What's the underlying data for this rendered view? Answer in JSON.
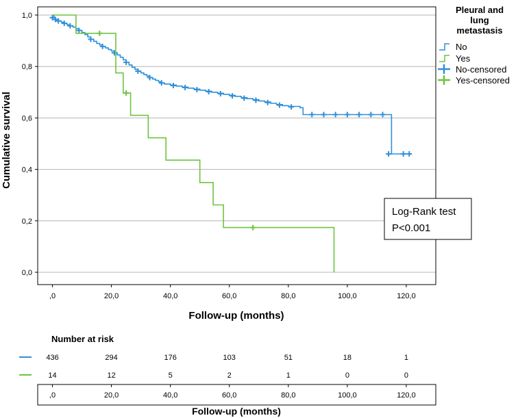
{
  "chart_data": {
    "type": "line",
    "subtype": "kaplan-meier",
    "xlabel": "Follow-up (months)",
    "ylabel": "Cumulative survival",
    "xlim": [
      -5,
      130
    ],
    "ylim": [
      0,
      1
    ],
    "x_ticks": [
      0,
      20,
      40,
      60,
      80,
      100,
      120
    ],
    "x_tick_labels": [
      ",0",
      "20,0",
      "40,0",
      "60,0",
      "80,0",
      "100,0",
      "120,0"
    ],
    "y_ticks": [
      0,
      0.2,
      0.4,
      0.6,
      0.8,
      1.0
    ],
    "y_tick_labels": [
      "0,0",
      "0,2",
      "0,4",
      "0,6",
      "0,8",
      "1,0"
    ],
    "grid": "horizontal",
    "legend": {
      "title_lines": [
        "Pleural and",
        "lung",
        "metastasis"
      ],
      "entries": [
        {
          "label": "No",
          "kind": "line",
          "series": "No"
        },
        {
          "label": "Yes",
          "kind": "line",
          "series": "Yes"
        },
        {
          "label": "No-censored",
          "kind": "censor",
          "series": "No"
        },
        {
          "label": "Yes-censored",
          "kind": "censor",
          "series": "Yes"
        }
      ]
    },
    "series": [
      {
        "name": "No",
        "color": "#2f8fd8",
        "steps": [
          [
            0,
            1.0
          ],
          [
            0.5,
            0.99
          ],
          [
            1,
            0.983
          ],
          [
            2,
            0.977
          ],
          [
            3,
            0.972
          ],
          [
            4,
            0.967
          ],
          [
            5,
            0.962
          ],
          [
            6,
            0.958
          ],
          [
            7,
            0.953
          ],
          [
            8,
            0.947
          ],
          [
            9,
            0.94
          ],
          [
            10,
            0.932
          ],
          [
            11,
            0.924
          ],
          [
            12,
            0.915
          ],
          [
            13,
            0.906
          ],
          [
            14,
            0.898
          ],
          [
            15,
            0.89
          ],
          [
            16,
            0.884
          ],
          [
            17,
            0.878
          ],
          [
            18,
            0.872
          ],
          [
            19,
            0.866
          ],
          [
            20,
            0.86
          ],
          [
            21,
            0.853
          ],
          [
            22,
            0.845
          ],
          [
            23,
            0.836
          ],
          [
            24,
            0.826
          ],
          [
            25,
            0.816
          ],
          [
            26,
            0.806
          ],
          [
            27,
            0.797
          ],
          [
            28,
            0.789
          ],
          [
            29,
            0.782
          ],
          [
            30,
            0.775
          ],
          [
            31,
            0.769
          ],
          [
            32,
            0.763
          ],
          [
            33,
            0.757
          ],
          [
            34,
            0.751
          ],
          [
            35,
            0.746
          ],
          [
            36,
            0.741
          ],
          [
            37,
            0.736
          ],
          [
            38,
            0.732
          ],
          [
            40,
            0.728
          ],
          [
            42,
            0.724
          ],
          [
            44,
            0.72
          ],
          [
            46,
            0.716
          ],
          [
            48,
            0.712
          ],
          [
            50,
            0.708
          ],
          [
            52,
            0.704
          ],
          [
            54,
            0.7
          ],
          [
            56,
            0.696
          ],
          [
            58,
            0.692
          ],
          [
            60,
            0.688
          ],
          [
            62,
            0.684
          ],
          [
            64,
            0.679
          ],
          [
            66,
            0.675
          ],
          [
            68,
            0.671
          ],
          [
            70,
            0.666
          ],
          [
            72,
            0.662
          ],
          [
            74,
            0.657
          ],
          [
            76,
            0.652
          ],
          [
            78,
            0.648
          ],
          [
            80,
            0.645
          ],
          [
            84,
            0.64
          ],
          [
            85,
            0.613
          ],
          [
            114,
            0.613
          ],
          [
            115,
            0.46
          ],
          [
            121,
            0.46
          ]
        ],
        "censored": [
          [
            0,
            0.99
          ],
          [
            1,
            0.983
          ],
          [
            2,
            0.977
          ],
          [
            4,
            0.968
          ],
          [
            6,
            0.958
          ],
          [
            9,
            0.94
          ],
          [
            13,
            0.906
          ],
          [
            17,
            0.878
          ],
          [
            21,
            0.853
          ],
          [
            25,
            0.816
          ],
          [
            29,
            0.782
          ],
          [
            33,
            0.757
          ],
          [
            37,
            0.736
          ],
          [
            41,
            0.726
          ],
          [
            45,
            0.718
          ],
          [
            49,
            0.71
          ],
          [
            53,
            0.702
          ],
          [
            57,
            0.694
          ],
          [
            61,
            0.686
          ],
          [
            65,
            0.677
          ],
          [
            69,
            0.669
          ],
          [
            73,
            0.66
          ],
          [
            77,
            0.65
          ],
          [
            81,
            0.643
          ],
          [
            88,
            0.613
          ],
          [
            92,
            0.613
          ],
          [
            96,
            0.613
          ],
          [
            100,
            0.613
          ],
          [
            104,
            0.613
          ],
          [
            108,
            0.613
          ],
          [
            112,
            0.613
          ],
          [
            114,
            0.46
          ],
          [
            119,
            0.46
          ],
          [
            121,
            0.46
          ]
        ]
      },
      {
        "name": "Yes",
        "color": "#6cc43e",
        "steps": [
          [
            0,
            1.0
          ],
          [
            8,
            0.929
          ],
          [
            21.5,
            0.775
          ],
          [
            23,
            0.775
          ],
          [
            24,
            0.697
          ],
          [
            26,
            0.697
          ],
          [
            26.5,
            0.61
          ],
          [
            32,
            0.61
          ],
          [
            32.5,
            0.523
          ],
          [
            38,
            0.523
          ],
          [
            38.5,
            0.436
          ],
          [
            49.5,
            0.436
          ],
          [
            50,
            0.349
          ],
          [
            54,
            0.349
          ],
          [
            54.5,
            0.262
          ],
          [
            57.5,
            0.262
          ],
          [
            58,
            0.174
          ],
          [
            95,
            0.174
          ],
          [
            95.5,
            0.0
          ]
        ],
        "censored": [
          [
            16,
            0.929
          ],
          [
            25,
            0.697
          ],
          [
            68,
            0.174
          ]
        ]
      }
    ],
    "annotation": {
      "lines": [
        "Log-Rank test",
        "P<0.001"
      ]
    },
    "risk_table": {
      "title": "Number at risk",
      "xlabel": "Follow-up (months)",
      "x_tick_labels": [
        ",0",
        "20,0",
        "40,0",
        "60,0",
        "80,0",
        "100,0",
        "120,0"
      ],
      "rows": [
        {
          "series": "No",
          "color": "#2f8fd8",
          "values": [
            436,
            294,
            176,
            103,
            51,
            18,
            1
          ]
        },
        {
          "series": "Yes",
          "color": "#6cc43e",
          "values": [
            14,
            12,
            5,
            2,
            1,
            0,
            0
          ]
        }
      ]
    }
  }
}
